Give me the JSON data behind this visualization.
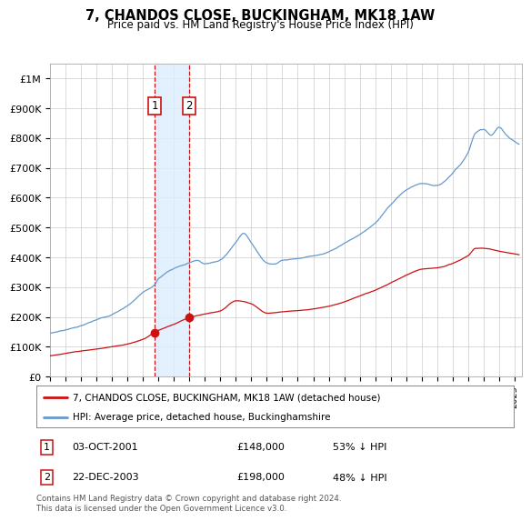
{
  "title": "7, CHANDOS CLOSE, BUCKINGHAM, MK18 1AW",
  "subtitle": "Price paid vs. HM Land Registry's House Price Index (HPI)",
  "xlim_start": 1995.0,
  "xlim_end": 2025.5,
  "ylim_min": 0,
  "ylim_max": 1050000,
  "yticks": [
    0,
    100000,
    200000,
    300000,
    400000,
    500000,
    600000,
    700000,
    800000,
    900000,
    1000000
  ],
  "ytick_labels": [
    "£0",
    "£100K",
    "£200K",
    "£300K",
    "£400K",
    "£500K",
    "£600K",
    "£700K",
    "£800K",
    "£900K",
    "£1M"
  ],
  "purchase1_year": 2001.75,
  "purchase1_price": 148000,
  "purchase2_year": 2003.97,
  "purchase2_price": 198000,
  "hpi_color": "#6699cc",
  "price_color": "#cc1111",
  "shade_color": "#ddeeff",
  "box_color": "#cc1111",
  "legend_label_price": "7, CHANDOS CLOSE, BUCKINGHAM, MK18 1AW (detached house)",
  "legend_label_hpi": "HPI: Average price, detached house, Buckinghamshire",
  "table_row1": [
    "1",
    "03-OCT-2001",
    "£148,000",
    "53% ↓ HPI"
  ],
  "table_row2": [
    "2",
    "22-DEC-2003",
    "£198,000",
    "48% ↓ HPI"
  ],
  "footer": "Contains HM Land Registry data © Crown copyright and database right 2024.\nThis data is licensed under the Open Government Licence v3.0.",
  "bg_color": "#ffffff",
  "hpi_knots_x": [
    1995,
    1996,
    1997,
    1998,
    1999,
    2000,
    2001,
    2001.75,
    2002,
    2003,
    2003.97,
    2004.5,
    2005,
    2006,
    2007,
    2007.5,
    2008,
    2009,
    2009.5,
    2010,
    2011,
    2012,
    2013,
    2014,
    2015,
    2016,
    2017,
    2018,
    2019,
    2020,
    2021,
    2022,
    2022.5,
    2023,
    2023.5,
    2024,
    2024.5,
    2025
  ],
  "hpi_knots_y": [
    145000,
    158000,
    172000,
    190000,
    210000,
    240000,
    285000,
    310000,
    330000,
    365000,
    385000,
    395000,
    385000,
    400000,
    460000,
    490000,
    460000,
    395000,
    390000,
    400000,
    405000,
    415000,
    430000,
    460000,
    490000,
    530000,
    590000,
    640000,
    660000,
    650000,
    690000,
    760000,
    830000,
    840000,
    820000,
    845000,
    820000,
    800000
  ],
  "prop_knots_x": [
    1995,
    1997,
    1999,
    2001,
    2001.75,
    2003,
    2003.97,
    2005,
    2006,
    2007,
    2008,
    2009,
    2010,
    2011,
    2012,
    2013,
    2014,
    2015,
    2016,
    2017,
    2018,
    2019,
    2020,
    2021,
    2022,
    2022.5,
    2023,
    2024,
    2024.5,
    2025
  ],
  "prop_knots_y": [
    70000,
    85000,
    100000,
    125000,
    148000,
    175000,
    198000,
    210000,
    220000,
    255000,
    245000,
    215000,
    220000,
    225000,
    230000,
    240000,
    255000,
    275000,
    295000,
    320000,
    345000,
    365000,
    370000,
    385000,
    410000,
    435000,
    435000,
    425000,
    420000,
    415000
  ]
}
